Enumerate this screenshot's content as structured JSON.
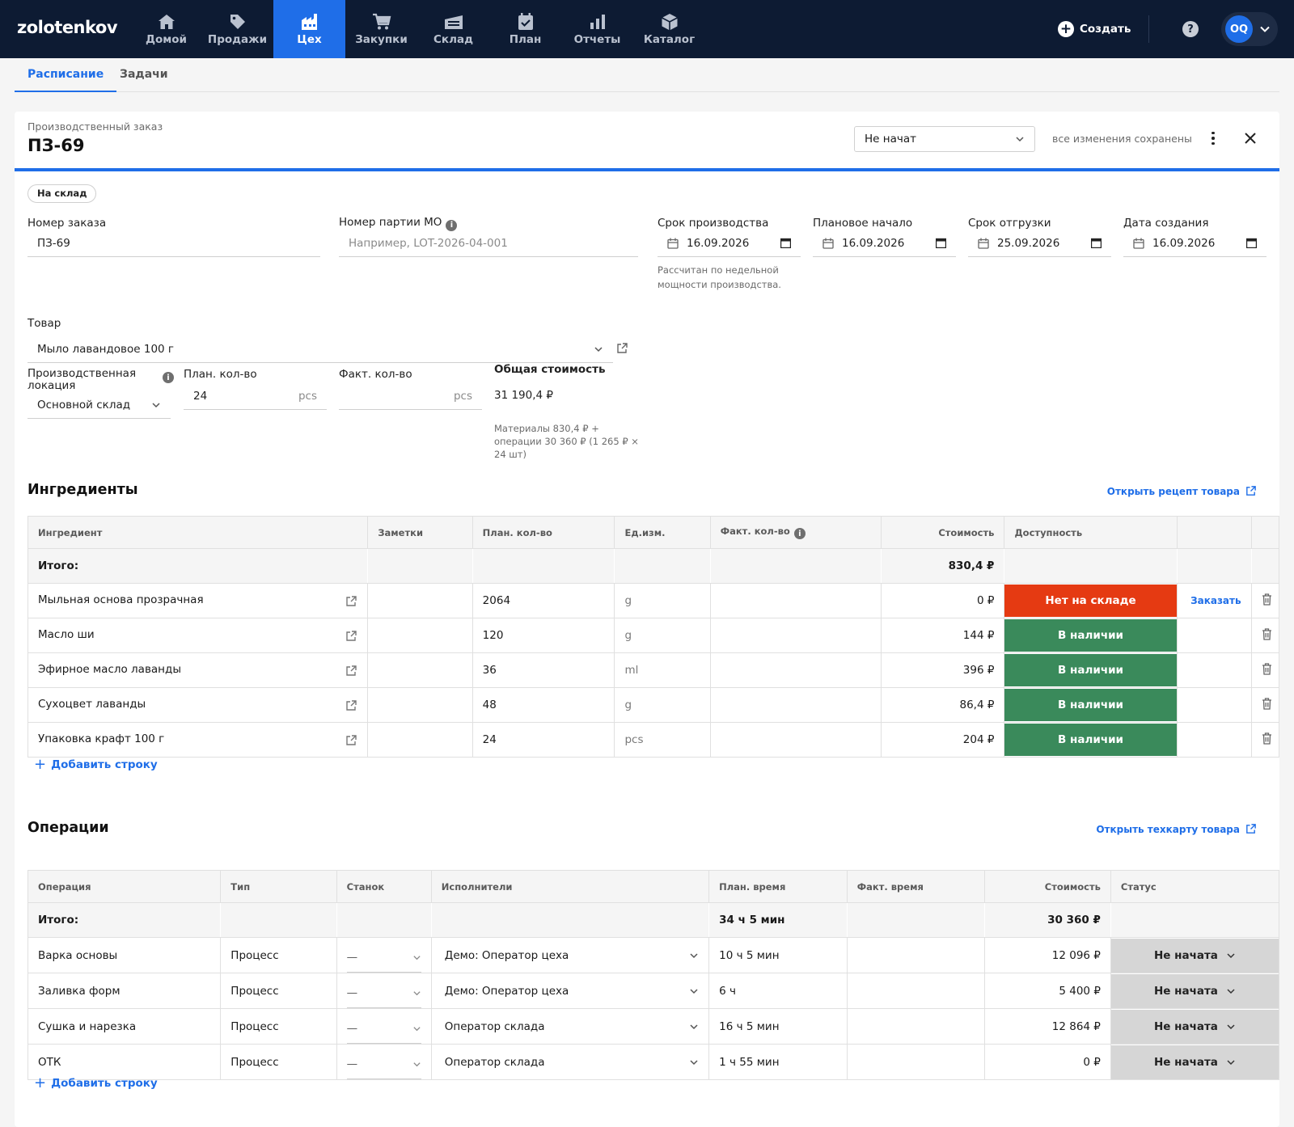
{
  "app": {
    "logo": "zolotenkov",
    "nav": [
      {
        "label": "Домой",
        "icon": "home-icon"
      },
      {
        "label": "Продажи",
        "icon": "tag-icon"
      },
      {
        "label": "Цех",
        "icon": "factory-icon"
      },
      {
        "label": "Закупки",
        "icon": "cart-icon"
      },
      {
        "label": "Склад",
        "icon": "warehouse-icon"
      },
      {
        "label": "План",
        "icon": "calendar-check-icon"
      },
      {
        "label": "Отчеты",
        "icon": "bar-chart-icon"
      },
      {
        "label": "Каталог",
        "icon": "box-icon"
      }
    ],
    "active_nav": "Цех",
    "create_label": "Создать",
    "help_label": "?",
    "user_initials": "OQ",
    "accent": "#1f6ee8",
    "nav_bg": "#0d1b33"
  },
  "subtabs": [
    "Расписание",
    "Задачи"
  ],
  "order": {
    "doc_type": "Производственный заказ",
    "title": "ПЗ-69",
    "status": "Не начат",
    "saved_note": "все изменения сохранены",
    "badge": "На склад",
    "fields": {
      "order_number_label": "Номер заказа",
      "order_number": "ПЗ-69",
      "batch_label": "Номер партии MO",
      "batch_placeholder": "Например, LOT-2026-04-001",
      "production_due_label": "Срок производства",
      "production_due": "16.09.2026",
      "production_due_hint": "Рассчитан по недельной мощности производства.",
      "planned_start_label": "Плановое начало",
      "planned_start": "16.09.2026",
      "ship_due_label": "Срок отгрузки",
      "ship_due": "25.09.2026",
      "created_label": "Дата создания",
      "created": "16.09.2026",
      "product_label": "Товар",
      "product": "Мыло лавандовое 100 г",
      "location_label": "Производственная локация",
      "location": "Основной склад",
      "plan_qty_label": "План. кол-во",
      "plan_qty": "24",
      "plan_qty_unit": "pcs",
      "fact_qty_label": "Факт. кол-во",
      "fact_qty_unit": "pcs",
      "total_cost_label": "Общая стоимость",
      "total_cost": "31 190,4 ₽",
      "total_cost_breakdown": "Материалы 830,4 ₽ + операции 30 360 ₽ (1 265 ₽ × 24 шт)"
    }
  },
  "ingredients": {
    "title": "Ингредиенты",
    "link": "Открыть рецепт товара",
    "columns": [
      "Ингредиент",
      "Заметки",
      "План. кол-во",
      "Ед.изм.",
      "Факт. кол-во",
      "Стоимость",
      "Доступность"
    ],
    "total_label": "Итого:",
    "total_cost": "830,4 ₽",
    "order_label": "Заказать",
    "rows": [
      {
        "name": "Мыльная основа прозрачная",
        "plan": "2064",
        "unit": "g",
        "cost": "0 ₽",
        "availability": "Нет на складе",
        "status": "out"
      },
      {
        "name": "Масло ши",
        "plan": "120",
        "unit": "g",
        "cost": "144 ₽",
        "availability": "В наличии",
        "status": "in"
      },
      {
        "name": "Эфирное масло лаванды",
        "plan": "36",
        "unit": "ml",
        "cost": "396 ₽",
        "availability": "В наличии",
        "status": "in"
      },
      {
        "name": "Сухоцвет лаванды",
        "plan": "48",
        "unit": "g",
        "cost": "86,4 ₽",
        "availability": "В наличии",
        "status": "in"
      },
      {
        "name": "Упаковка крафт 100 г",
        "plan": "24",
        "unit": "pcs",
        "cost": "204 ₽",
        "availability": "В наличии",
        "status": "in"
      }
    ],
    "add_row": "Добавить строку",
    "colors": {
      "out": "#e53a12",
      "in": "#3a8a5b"
    }
  },
  "operations": {
    "title": "Операции",
    "link": "Открыть техкарту товара",
    "columns": [
      "Операция",
      "Тип",
      "Станок",
      "Исполнители",
      "План. время",
      "Факт. время",
      "Стоимость",
      "Статус"
    ],
    "total_label": "Итого:",
    "total_time": "34 ч 5 мин",
    "total_cost": "30 360 ₽",
    "rows": [
      {
        "name": "Варка основы",
        "type": "Процесс",
        "machine": "—",
        "worker": "Демо: Оператор цеха",
        "plan_time": "10 ч 5 мин",
        "cost": "12 096 ₽",
        "status": "Не начата"
      },
      {
        "name": "Заливка форм",
        "type": "Процесс",
        "machine": "—",
        "worker": "Демо: Оператор цеха",
        "plan_time": "6 ч",
        "cost": "5 400 ₽",
        "status": "Не начата"
      },
      {
        "name": "Сушка и нарезка",
        "type": "Процесс",
        "machine": "—",
        "worker": "Оператор склада",
        "plan_time": "16 ч 5 мин",
        "cost": "12 864 ₽",
        "status": "Не начата"
      },
      {
        "name": "ОТК",
        "type": "Процесс",
        "machine": "—",
        "worker": "Оператор склада",
        "plan_time": "1 ч 55 мин",
        "cost": "0 ₽",
        "status": "Не начата"
      }
    ],
    "add_row": "Добавить строку"
  }
}
